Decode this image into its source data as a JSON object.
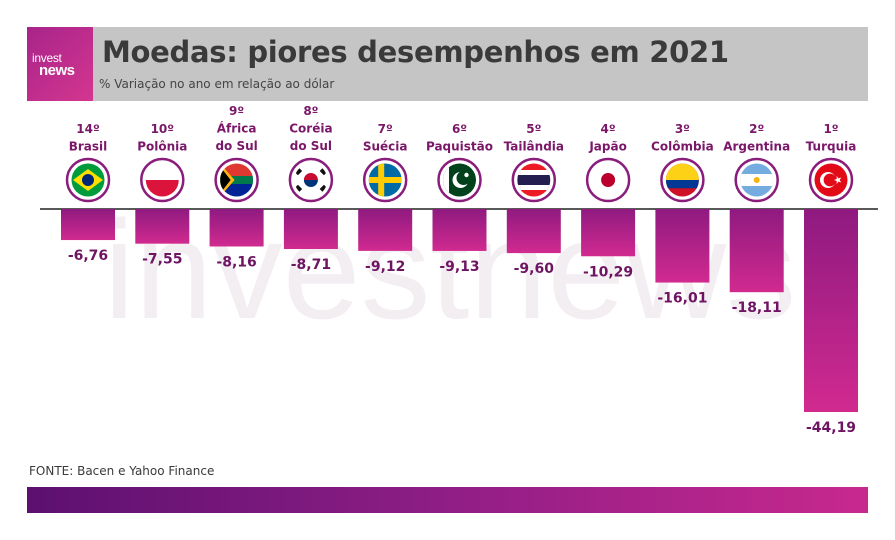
{
  "header": {
    "logo_line1": "invest",
    "logo_line2": "news",
    "title": "Moedas: piores desempenhos em 2021",
    "subtitle": "% Variação no ano em relação ao dólar"
  },
  "watermark": "investnews",
  "source": "FONTE: Bacen e Yahoo Finance",
  "colors": {
    "bar_top": "#8f1a80",
    "bar_bottom": "#d12a8f",
    "value_text": "#6e1463",
    "rank_text": "#7a1768",
    "header_bg": "#c5c5c5"
  },
  "chart_data": {
    "type": "bar",
    "title": "Moedas: piores desempenhos em 2021",
    "subtitle": "% Variação no ano em relação ao dólar",
    "categories": [
      "Brasil",
      "Polônia",
      "África do Sul",
      "Coréia do Sul",
      "Suécia",
      "Paquistão",
      "Tailândia",
      "Japão",
      "Colômbia",
      "Argentina",
      "Turquia"
    ],
    "ranks": [
      "14º",
      "10º",
      "9º",
      "8º",
      "7º",
      "6º",
      "5º",
      "4º",
      "3º",
      "2º",
      "1º"
    ],
    "label_lines": [
      [
        "Brasil"
      ],
      [
        "Polônia"
      ],
      [
        "África",
        "do Sul"
      ],
      [
        "Coréia",
        "do Sul"
      ],
      [
        "Suécia"
      ],
      [
        "Paquistão"
      ],
      [
        "Tailândia"
      ],
      [
        "Japão"
      ],
      [
        "Colômbia"
      ],
      [
        "Argentina"
      ],
      [
        "Turquia"
      ]
    ],
    "flags": [
      "brazil-flag",
      "poland-flag",
      "south-africa-flag",
      "south-korea-flag",
      "sweden-flag",
      "pakistan-flag",
      "thailand-flag",
      "japan-flag",
      "colombia-flag",
      "argentina-flag",
      "turkey-flag"
    ],
    "values": [
      -6.76,
      -7.55,
      -8.16,
      -8.71,
      -9.12,
      -9.13,
      -9.6,
      -10.29,
      -16.01,
      -18.11,
      -44.19
    ],
    "value_labels": [
      "-6,76",
      "-7,55",
      "-8,16",
      "-8,71",
      "-9,12",
      "-9,13",
      "-9,60",
      "-10,29",
      "-16,01",
      "-18,11",
      "-44,19"
    ],
    "ylim": [
      -44.19,
      0
    ],
    "grid": false,
    "legend": "none"
  }
}
